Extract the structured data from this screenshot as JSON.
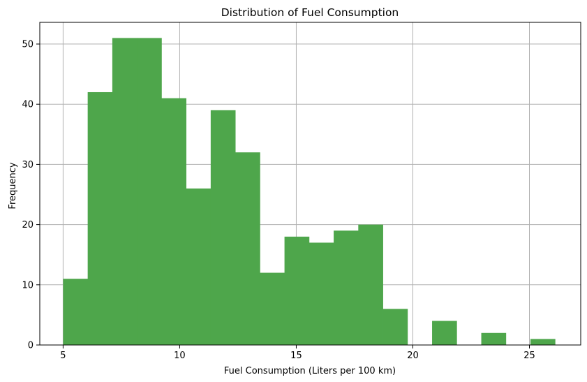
{
  "chart_data": {
    "type": "histogram",
    "title": "Distribution of Fuel Consumption",
    "xlabel": "Fuel Consumption (Liters per 100 km)",
    "ylabel": "Frequency",
    "xlim": [
      4.0,
      27.2
    ],
    "ylim": [
      0,
      53.6
    ],
    "xticks": [
      5,
      10,
      15,
      20,
      25
    ],
    "yticks": [
      0,
      10,
      20,
      30,
      40,
      50
    ],
    "grid": true,
    "bar_color": "#4ea64b",
    "bin_width": 1.055,
    "bins": [
      {
        "start": 5.0,
        "count": 11
      },
      {
        "start": 6.055,
        "count": 42
      },
      {
        "start": 7.11,
        "count": 51
      },
      {
        "start": 8.165,
        "count": 51
      },
      {
        "start": 9.22,
        "count": 41
      },
      {
        "start": 10.275,
        "count": 26
      },
      {
        "start": 11.33,
        "count": 39
      },
      {
        "start": 12.385,
        "count": 32
      },
      {
        "start": 13.44,
        "count": 12
      },
      {
        "start": 14.495,
        "count": 18
      },
      {
        "start": 15.55,
        "count": 17
      },
      {
        "start": 16.605,
        "count": 19
      },
      {
        "start": 17.66,
        "count": 20
      },
      {
        "start": 18.715,
        "count": 6
      },
      {
        "start": 19.77,
        "count": 0
      },
      {
        "start": 20.825,
        "count": 4
      },
      {
        "start": 21.88,
        "count": 0
      },
      {
        "start": 22.935,
        "count": 2
      },
      {
        "start": 23.99,
        "count": 0
      },
      {
        "start": 25.045,
        "count": 1
      }
    ]
  }
}
